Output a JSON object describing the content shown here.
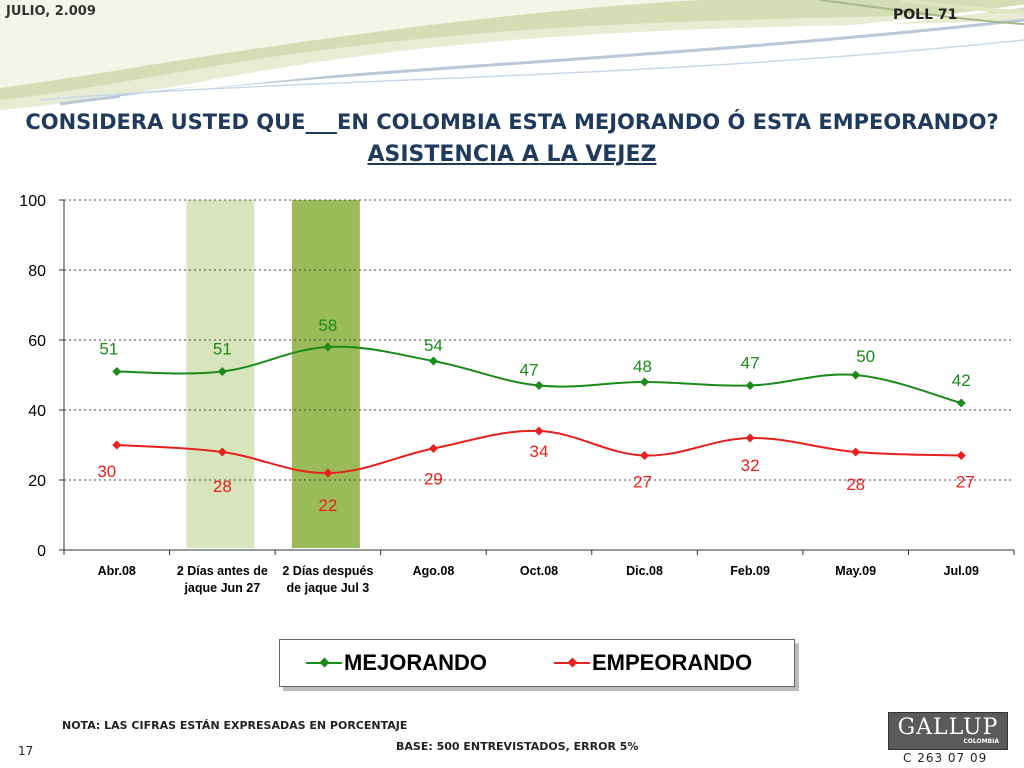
{
  "header": {
    "date": "JULIO, 2.009",
    "poll": "POLL 71"
  },
  "title": {
    "question": "CONSIDERA USTED QUE___EN COLOMBIA ESTA MEJORANDO Ó ESTA EMPEORANDO?",
    "topic": "ASISTENCIA A LA VEJEZ"
  },
  "colors": {
    "mejorando": "#1a8a1a",
    "empeorando": "#e8201e",
    "highlight_light": "#d8e4bc",
    "highlight_dark": "#9bbb59"
  },
  "chart_data": {
    "type": "line",
    "categories": [
      [
        "Abr.08"
      ],
      [
        "2 Días antes de",
        "jaque Jun 27"
      ],
      [
        "2 Días después",
        "de jaque Jul 3"
      ],
      [
        "Ago.08"
      ],
      [
        "Oct.08"
      ],
      [
        "Dic.08"
      ],
      [
        "Feb.09"
      ],
      [
        "May.09"
      ],
      [
        "Jul.09"
      ]
    ],
    "series": [
      {
        "name": "MEJORANDO",
        "values": [
          51,
          51,
          58,
          54,
          47,
          48,
          47,
          50,
          42
        ]
      },
      {
        "name": "EMPEORANDO",
        "values": [
          30,
          28,
          22,
          29,
          34,
          27,
          32,
          28,
          27
        ]
      }
    ],
    "ylim": [
      0,
      100
    ],
    "yticks": [
      0,
      20,
      40,
      60,
      80,
      100
    ],
    "highlighted_categories": [
      1,
      2
    ],
    "grid": true,
    "legend_position": "bottom"
  },
  "legend": {
    "mejorando": "MEJORANDO",
    "empeorando": "EMPEORANDO"
  },
  "footer": {
    "note": "NOTA: LAS CIFRAS ESTÁN EXPRESADAS EN PORCENTAJE",
    "base": "BASE: 500 ENTREVISTADOS, ERROR 5%",
    "page": "17",
    "code": "C 263 07 09",
    "logo_name": "GALLUP",
    "logo_sub": "COLOMBIA"
  }
}
